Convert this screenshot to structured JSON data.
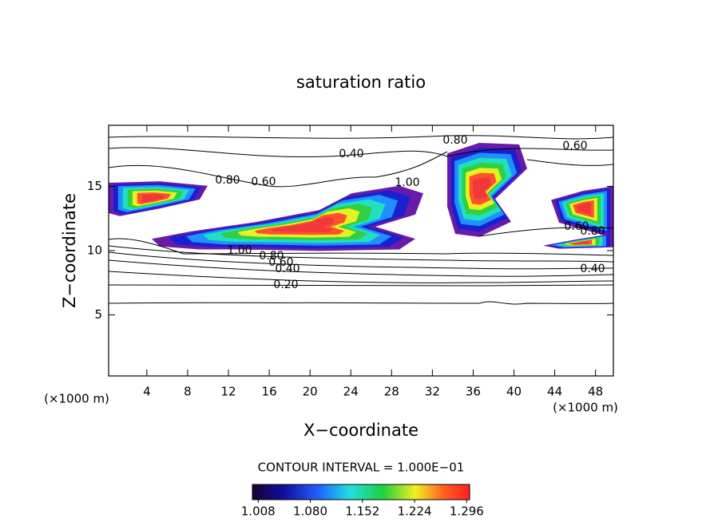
{
  "chart_data": {
    "type": "contour",
    "title": "saturation ratio",
    "x_label": "X−coordinate",
    "y_label": "Z−coordinate",
    "x_unit": "(×1000 m)",
    "y_unit": "(×1000 m)",
    "xlim": [
      0.25,
      49.75
    ],
    "ylim": [
      0.25,
      19.75
    ],
    "xticks": [
      4,
      8,
      12,
      16,
      20,
      24,
      28,
      32,
      36,
      40,
      44,
      48
    ],
    "yticks": [
      5,
      10,
      15
    ],
    "contour_labels": [
      "0.40",
      "0.80",
      "0.60",
      "0.80",
      "0.60",
      "1.00",
      "1.00",
      "0.80",
      "0.60",
      "0.40",
      "0.20",
      "0.40",
      "0.60",
      "0.80"
    ],
    "contour_interval": "CONTOUR INTERVAL = 1.000E−01",
    "colorbar_lim": [
      1.0,
      1.3
    ],
    "colorbar_ticks": [
      {
        "value": 1.008,
        "label": "1.008"
      },
      {
        "value": 1.08,
        "label": "1.080"
      },
      {
        "value": 1.152,
        "label": "1.152"
      },
      {
        "value": 1.224,
        "label": "1.224"
      },
      {
        "value": 1.296,
        "label": "1.296"
      }
    ]
  }
}
